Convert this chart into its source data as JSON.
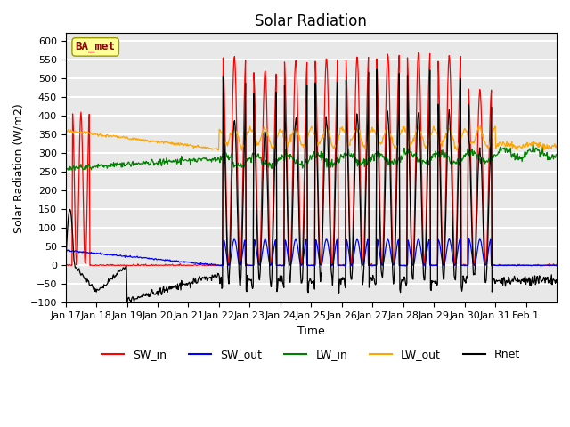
{
  "title": "Solar Radiation",
  "xlabel": "Time",
  "ylabel": "Solar Radiation (W/m2)",
  "ylim": [
    -100,
    620
  ],
  "annotation": "BA_met",
  "annotation_color": "#8B0000",
  "annotation_bg": "#FFFF99",
  "background_color": "#E8E8E8",
  "grid_color": "white",
  "colors": {
    "SW_in": "red",
    "SW_out": "blue",
    "LW_in": "green",
    "LW_out": "orange",
    "Rnet": "black"
  },
  "x_ticks_labels": [
    "Jan 17",
    "Jan 18",
    "Jan 19",
    "Jan 20",
    "Jan 21",
    "Jan 22",
    "Jan 23",
    "Jan 24",
    "Jan 25",
    "Jan 26",
    "Jan 27",
    "Jan 28",
    "Jan 29",
    "Jan 30",
    "Jan 31",
    "Feb 1"
  ],
  "x_ticks_pos": [
    0,
    1,
    2,
    3,
    4,
    5,
    6,
    7,
    8,
    9,
    10,
    11,
    12,
    13,
    14,
    15
  ],
  "yticks": [
    -100,
    -50,
    0,
    50,
    100,
    150,
    200,
    250,
    300,
    350,
    400,
    450,
    500,
    550,
    600
  ],
  "legend_labels": [
    "SW_in",
    "SW_out",
    "LW_in",
    "LW_out",
    "Rnet"
  ],
  "n_days": 16,
  "n_per_day": 48
}
